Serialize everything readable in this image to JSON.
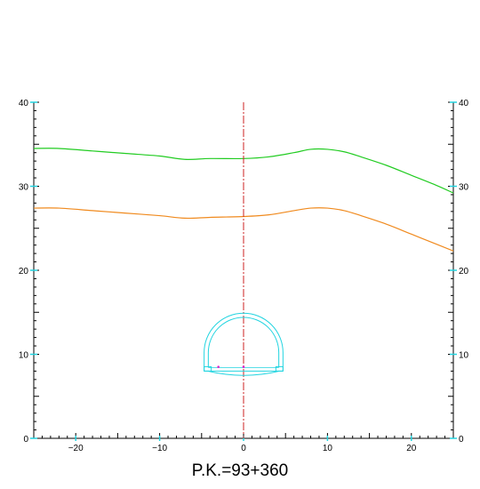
{
  "caption": "P.K.=93+360",
  "colors": {
    "terrain_top": "#22cc22",
    "terrain_bottom": "#f08a1e",
    "axis_line": "#cc2222",
    "tunnel": "#22d4e0",
    "tunnel_points": "#dd22cc",
    "frame": "#000000",
    "tick_accent": "#22d4e0"
  },
  "chart_data": {
    "type": "line",
    "xlim": [
      -25,
      25
    ],
    "ylim": [
      0,
      40
    ],
    "x_ticks": [
      -20,
      -10,
      0,
      10,
      20
    ],
    "x_tick_labels": [
      "−20",
      "−10",
      "0",
      "10",
      "20"
    ],
    "y_ticks": [
      0,
      10,
      20,
      30,
      40
    ],
    "y_tick_labels": [
      "0",
      "10",
      "20",
      "30",
      "40"
    ],
    "centerline_x": 0,
    "series": [
      {
        "key": "terrain_top",
        "points": [
          [
            -25,
            34.5
          ],
          [
            -22,
            34.5
          ],
          [
            -18,
            34.2
          ],
          [
            -14,
            33.9
          ],
          [
            -10,
            33.6
          ],
          [
            -7,
            33.2
          ],
          [
            -4,
            33.3
          ],
          [
            0,
            33.3
          ],
          [
            3,
            33.5
          ],
          [
            6,
            34.0
          ],
          [
            8,
            34.4
          ],
          [
            10,
            34.4
          ],
          [
            12,
            34.1
          ],
          [
            14,
            33.5
          ],
          [
            17,
            32.5
          ],
          [
            20,
            31.3
          ],
          [
            23,
            30.1
          ],
          [
            25,
            29.2
          ]
        ]
      },
      {
        "key": "terrain_bottom",
        "points": [
          [
            -25,
            27.4
          ],
          [
            -22,
            27.4
          ],
          [
            -18,
            27.1
          ],
          [
            -14,
            26.8
          ],
          [
            -10,
            26.5
          ],
          [
            -7,
            26.2
          ],
          [
            -4,
            26.3
          ],
          [
            0,
            26.4
          ],
          [
            3,
            26.6
          ],
          [
            6,
            27.1
          ],
          [
            8,
            27.4
          ],
          [
            10,
            27.4
          ],
          [
            12,
            27.1
          ],
          [
            14,
            26.5
          ],
          [
            17,
            25.5
          ],
          [
            20,
            24.3
          ],
          [
            23,
            23.1
          ],
          [
            25,
            22.3
          ]
        ]
      }
    ],
    "tunnel": {
      "center_x": 0,
      "springline_y": 10.2,
      "outer_radius": 4.7,
      "inner_radius": 4.2,
      "floor_y": 8.0,
      "invert_y": 7.4,
      "points": [
        [
          -3,
          8.5
        ],
        [
          0,
          8.5
        ]
      ]
    }
  }
}
